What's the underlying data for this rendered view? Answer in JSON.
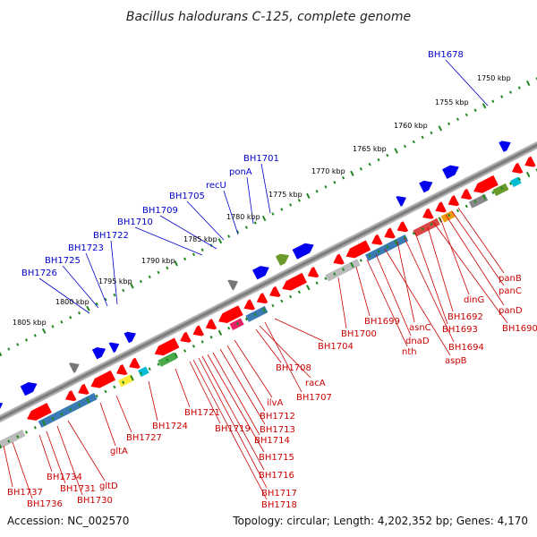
{
  "title": "Bacillus halodurans C-125, complete genome",
  "footer": {
    "accession": "Accession: NC_002570",
    "summary": "Topology: circular; Length: 4,202,352 bp; Genes: 4,170"
  },
  "kbp_ticks": [
    "1750 kbp",
    "1755 kbp",
    "1760 kbp",
    "1765 kbp",
    "1770 kbp",
    "1775 kbp",
    "1780 kbp",
    "1785 kbp",
    "1790 kbp",
    "1795 kbp",
    "1800 kbp",
    "1805 kbp"
  ],
  "forward_genes": [
    "BH1678",
    "BH1701",
    "ponA",
    "recU",
    "BH1705",
    "BH1709",
    "BH1710",
    "BH1722",
    "BH1723",
    "BH1725",
    "BH1726"
  ],
  "reverse_genes": [
    "panB",
    "panC",
    "dinG",
    "panD",
    "BH1690",
    "BH1692",
    "BH1693",
    "BH1694",
    "asnC",
    "aspB",
    "dnaD",
    "nth",
    "BH1699",
    "BH1700",
    "BH1704",
    "BH1707",
    "racA",
    "BH1708",
    "ilvA",
    "BH1712",
    "BH1713",
    "BH1714",
    "BH1715",
    "BH1716",
    "BH1717",
    "BH1718",
    "BH1719",
    "BH1721",
    "BH1724",
    "BH1727",
    "gltA",
    "gltD",
    "BH1730",
    "BH1731",
    "BH1734",
    "BH1736",
    "BH1737"
  ],
  "colors": {
    "forward_label": "#0000cc",
    "reverse_label": "#cc0000",
    "tick": "#228822",
    "backbone": "#888888",
    "gene_red": "#ff0000",
    "gene_blue": "#0000ee"
  }
}
